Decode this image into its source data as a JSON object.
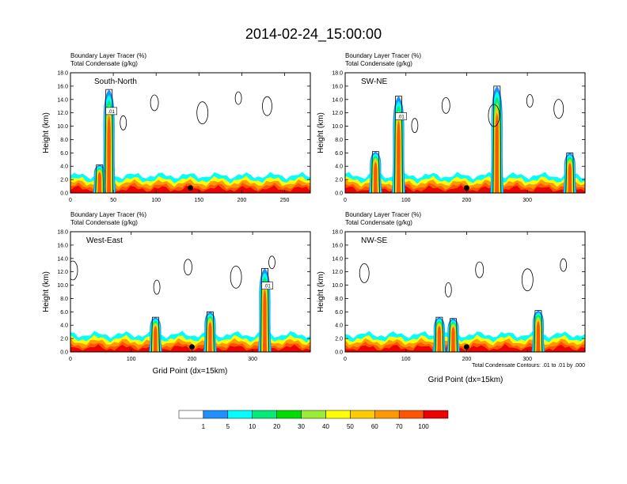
{
  "figure": {
    "title": "2014-02-24_15:00:00",
    "contour_note": "Total Condensate Contours: .01 to .01 by .000",
    "xlabel": "Grid Point (dx=15km)",
    "ylabel": "Height (km)"
  },
  "colorbar": {
    "labels": [
      "1",
      "5",
      "10",
      "20",
      "30",
      "40",
      "50",
      "60",
      "70",
      "100"
    ],
    "colors": [
      "#ffffff",
      "#1e90ff",
      "#00ffff",
      "#00ee77",
      "#00dd00",
      "#99ee33",
      "#ffff00",
      "#ffcc00",
      "#ff9900",
      "#ff5500",
      "#ee0000"
    ]
  },
  "chart_data": [
    {
      "type": "heatmap",
      "title": "South-North",
      "field_label_1": "Boundary Layer Tracer    (%)",
      "field_label_2": "Total Condensate    (g/kg)",
      "contour_label": ".01",
      "xlim": [
        0,
        280
      ],
      "ylim": [
        0,
        18
      ],
      "xticks": [
        0,
        50,
        100,
        150,
        200,
        250
      ],
      "xticklabels": [
        "0",
        "50",
        "100",
        "150",
        "200",
        "250"
      ],
      "yticks": [
        0,
        2,
        4,
        6,
        8,
        10,
        12,
        14,
        16,
        18
      ],
      "yticklabels": [
        "0.0",
        "2.0",
        "4.0",
        "6.0",
        "8.0",
        "10.0",
        "12.0",
        "14.0",
        "16.0",
        "18.0"
      ],
      "marker_x": 140,
      "plumes": [
        {
          "x": 45,
          "top": 15.5
        },
        {
          "x": 34,
          "top": 4.2
        }
      ]
    },
    {
      "type": "heatmap",
      "title": "SW-NE",
      "field_label_1": "Boundary Layer Tracer    (%)",
      "field_label_2": "Total Condensate    (g/kg)",
      "contour_label": ".01",
      "xlim": [
        0,
        395
      ],
      "ylim": [
        0,
        18
      ],
      "xticks": [
        0,
        100,
        200,
        300
      ],
      "xticklabels": [
        "0",
        "100",
        "200",
        "300"
      ],
      "yticks": [
        0,
        2,
        4,
        6,
        8,
        10,
        12,
        14,
        16,
        18
      ],
      "yticklabels": [
        "0.0",
        "2.0",
        "4.0",
        "6.0",
        "8.0",
        "10.0",
        "12.0",
        "14.0",
        "16.0",
        "18.0"
      ],
      "marker_x": 200,
      "plumes": [
        {
          "x": 88,
          "top": 14.5
        },
        {
          "x": 50,
          "top": 6.2
        },
        {
          "x": 370,
          "top": 6.0
        },
        {
          "x": 250,
          "top": 16.0
        }
      ]
    },
    {
      "type": "heatmap",
      "title": "West-East",
      "field_label_1": "Boundary Layer Tracer    (%)",
      "field_label_2": "Total Condensate    (g/kg)",
      "contour_label": ".01",
      "xlim": [
        0,
        395
      ],
      "ylim": [
        0,
        18
      ],
      "xticks": [
        0,
        100,
        200,
        300
      ],
      "xticklabels": [
        "0",
        "100",
        "200",
        "300"
      ],
      "yticks": [
        0,
        2,
        4,
        6,
        8,
        10,
        12,
        14,
        16,
        18
      ],
      "yticklabels": [
        "0.0",
        "2.0",
        "4.0",
        "6.0",
        "8.0",
        "10.0",
        "12.0",
        "14.0",
        "16.0",
        "18.0"
      ],
      "marker_x": 200,
      "plumes": [
        {
          "x": 320,
          "top": 12.5
        },
        {
          "x": 230,
          "top": 6.0
        },
        {
          "x": 140,
          "top": 5.2
        }
      ]
    },
    {
      "type": "heatmap",
      "title": "NW-SE",
      "field_label_1": "Boundary Layer Tracer    (%)",
      "field_label_2": "Total Condensate    (g/kg)",
      "contour_label": "",
      "xlim": [
        0,
        395
      ],
      "ylim": [
        0,
        18
      ],
      "xticks": [
        0,
        100,
        200,
        300
      ],
      "xticklabels": [
        "0",
        "100",
        "200",
        "300"
      ],
      "yticks": [
        0,
        2,
        4,
        6,
        8,
        10,
        12,
        14,
        16,
        18
      ],
      "yticklabels": [
        "0.0",
        "2.0",
        "4.0",
        "6.0",
        "8.0",
        "10.0",
        "12.0",
        "14.0",
        "16.0",
        "18.0"
      ],
      "marker_x": 200,
      "plumes": [
        {
          "x": 318,
          "top": 6.2
        },
        {
          "x": 178,
          "top": 5.0
        },
        {
          "x": 155,
          "top": 5.2
        }
      ]
    }
  ]
}
